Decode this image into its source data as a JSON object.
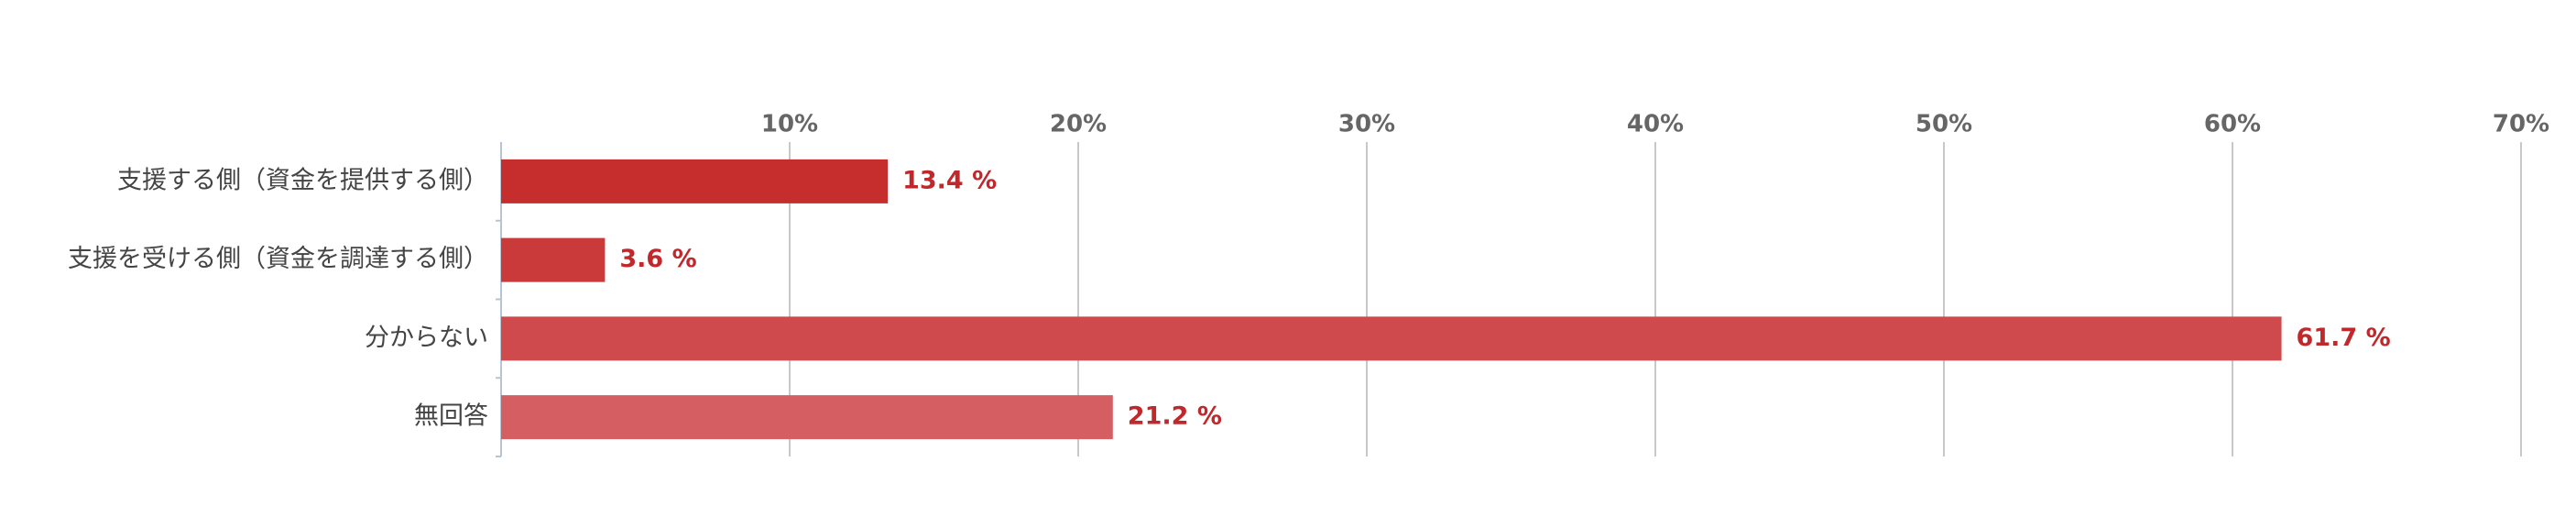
{
  "chart_data": {
    "type": "bar",
    "orientation": "horizontal",
    "categories": [
      "支援する側（資金を提供する側）",
      "支援を受ける側（資金を調達する側）",
      "分からない",
      "無回答"
    ],
    "values": [
      13.4,
      3.6,
      61.7,
      21.2
    ],
    "value_labels": [
      "13.4 %",
      "3.6 %",
      "61.7 %",
      "21.2 %"
    ],
    "colors": [
      "#c62d2d",
      "#ca3a3a",
      "#cf4a4c",
      "#d55e62"
    ],
    "xlim": [
      0,
      70
    ],
    "xticks": [
      {
        "value": 10,
        "label": "10%"
      },
      {
        "value": 20,
        "label": "20%"
      },
      {
        "value": 30,
        "label": "30%"
      },
      {
        "value": 40,
        "label": "40%"
      },
      {
        "value": 50,
        "label": "50%"
      },
      {
        "value": 60,
        "label": "60%"
      },
      {
        "value": 70,
        "label": "70%"
      }
    ],
    "grid": true
  }
}
